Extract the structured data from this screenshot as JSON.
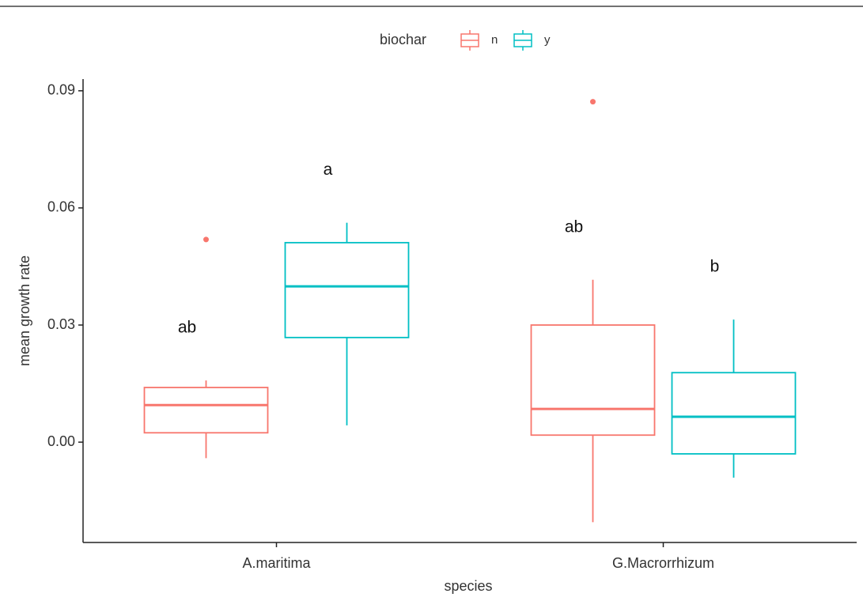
{
  "chart_data": {
    "type": "boxplot",
    "x_label": "species",
    "y_label": "mean growth rate",
    "legend_title": "biochar",
    "categories": [
      "A.maritima",
      "G.Macrorrhizum"
    ],
    "ylim": [
      -0.0257,
      0.093
    ],
    "yticks": [
      {
        "value": 0,
        "label": "0.00"
      },
      0.03,
      0.06,
      0.09
    ],
    "series": [
      {
        "name": "n",
        "color": "#F8766D",
        "boxes": [
          {
            "low": -0.0041,
            "q1": 0.0024,
            "median": 0.0095,
            "q3": 0.014,
            "high": 0.0158,
            "outliers": [
              0.0519
            ],
            "annotation": "ab"
          },
          {
            "low": -0.0205,
            "q1": 0.0018,
            "median": 0.0085,
            "q3": 0.03,
            "high": 0.0416,
            "outliers": [
              0.0872
            ],
            "annotation": "ab"
          }
        ]
      },
      {
        "name": "y",
        "color": "#00BFC4",
        "boxes": [
          {
            "low": 0.0043,
            "q1": 0.0268,
            "median": 0.0399,
            "q3": 0.0511,
            "high": 0.0562,
            "outliers": [],
            "annotation": "a"
          },
          {
            "low": -0.0091,
            "q1": -0.003,
            "median": 0.0065,
            "q3": 0.0178,
            "high": 0.0314,
            "outliers": [],
            "annotation": "b"
          }
        ]
      }
    ]
  }
}
